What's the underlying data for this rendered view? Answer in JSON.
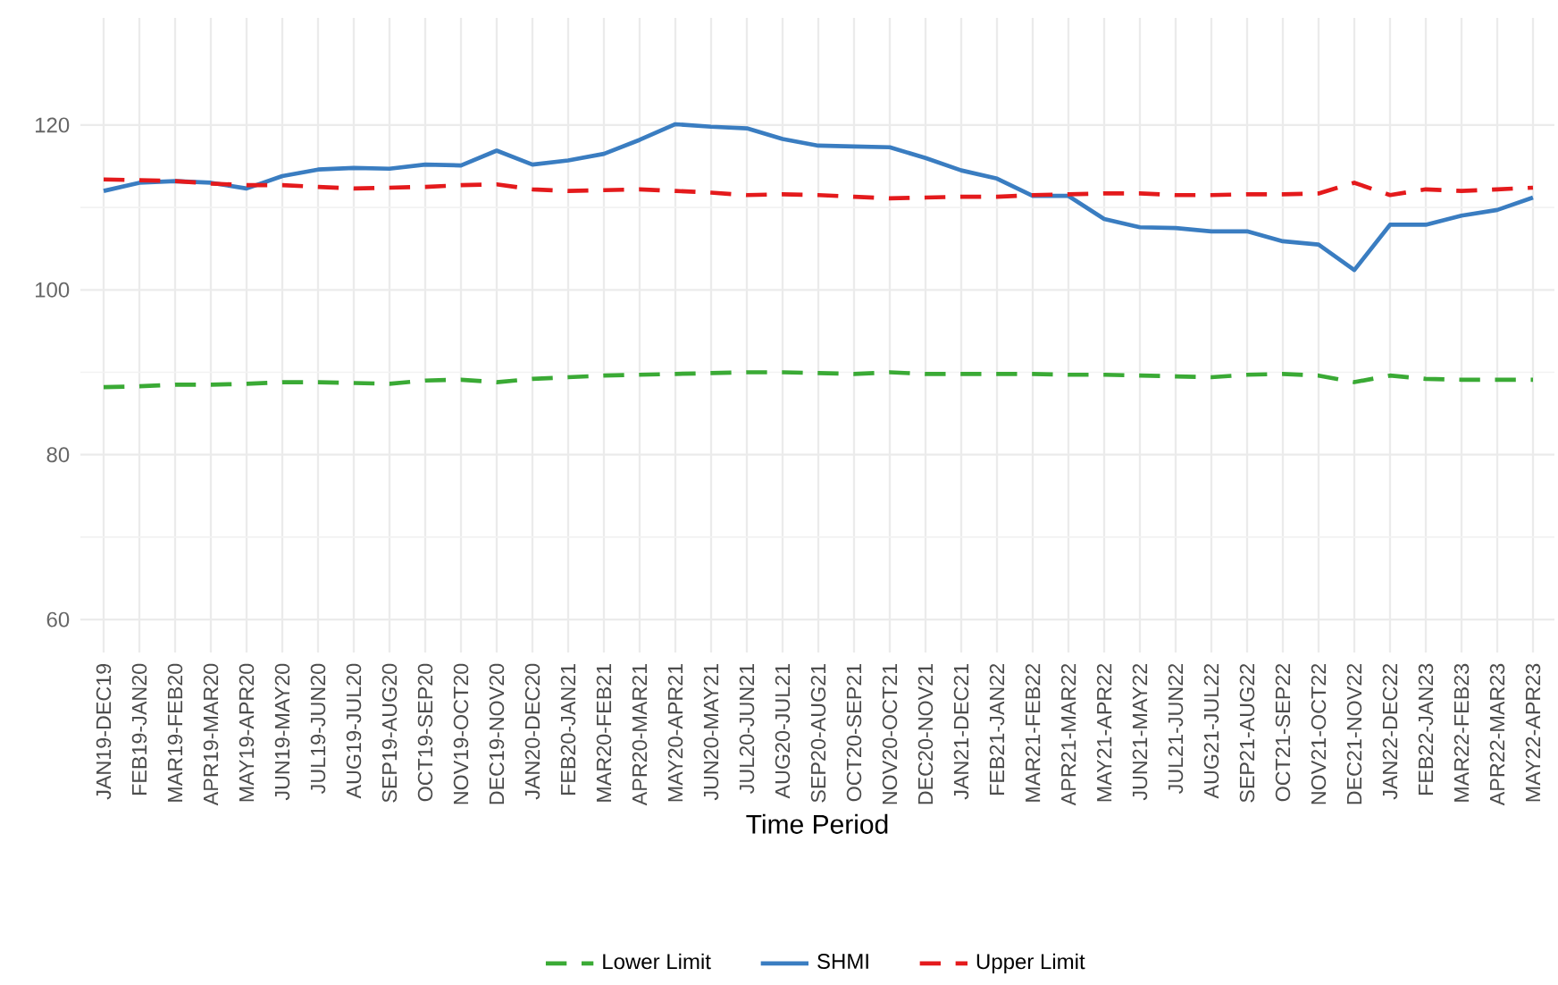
{
  "chart_data": {
    "type": "line",
    "xlabel": "Time Period",
    "categories": [
      "JAN19-DEC19",
      "FEB19-JAN20",
      "MAR19-FEB20",
      "APR19-MAR20",
      "MAY19-APR20",
      "JUN19-MAY20",
      "JUL19-JUN20",
      "AUG19-JUL20",
      "SEP19-AUG20",
      "OCT19-SEP20",
      "NOV19-OCT20",
      "DEC19-NOV20",
      "JAN20-DEC20",
      "FEB20-JAN21",
      "MAR20-FEB21",
      "APR20-MAR21",
      "MAY20-APR21",
      "JUN20-MAY21",
      "JUL20-JUN21",
      "AUG20-JUL21",
      "SEP20-AUG21",
      "OCT20-SEP21",
      "NOV20-OCT21",
      "DEC20-NOV21",
      "JAN21-DEC21",
      "FEB21-JAN22",
      "MAR21-FEB22",
      "APR21-MAR22",
      "MAY21-APR22",
      "JUN21-MAY22",
      "JUL21-JUN22",
      "AUG21-JUL22",
      "SEP21-AUG22",
      "OCT21-SEP22",
      "NOV21-OCT22",
      "DEC21-NOV22",
      "JAN22-DEC22",
      "FEB22-JAN23",
      "MAR22-FEB23",
      "APR22-MAR23",
      "MAY22-APR23"
    ],
    "series": [
      {
        "name": "Lower Limit",
        "color": "#3aaa35",
        "line_style": "dashed",
        "values": [
          88.2,
          88.3,
          88.5,
          88.5,
          88.6,
          88.8,
          88.8,
          88.7,
          88.6,
          89.0,
          89.1,
          88.8,
          89.2,
          89.4,
          89.6,
          89.7,
          89.8,
          89.9,
          90.0,
          90.0,
          89.9,
          89.8,
          90.0,
          89.8,
          89.8,
          89.8,
          89.8,
          89.7,
          89.7,
          89.6,
          89.5,
          89.4,
          89.7,
          89.8,
          89.6,
          88.8,
          89.6,
          89.2,
          89.1,
          89.1,
          89.1
        ]
      },
      {
        "name": "SHMI",
        "color": "#3a7dc1",
        "line_style": "solid",
        "values": [
          112.0,
          113.0,
          113.2,
          113.0,
          112.3,
          113.8,
          114.6,
          114.8,
          114.7,
          115.2,
          115.1,
          116.9,
          115.2,
          115.7,
          116.5,
          118.2,
          120.1,
          119.8,
          119.6,
          118.3,
          117.5,
          117.4,
          117.3,
          116.0,
          114.5,
          113.5,
          111.4,
          111.4,
          108.6,
          107.6,
          107.5,
          107.1,
          107.1,
          105.9,
          105.5,
          102.4,
          107.9,
          107.9,
          109.0,
          109.7,
          111.2
        ]
      },
      {
        "name": "Upper Limit",
        "color": "#e41a1c",
        "line_style": "dashed",
        "values": [
          113.4,
          113.3,
          113.2,
          112.9,
          112.7,
          112.7,
          112.5,
          112.3,
          112.4,
          112.5,
          112.7,
          112.8,
          112.2,
          112.0,
          112.1,
          112.2,
          112.0,
          111.8,
          111.5,
          111.6,
          111.5,
          111.3,
          111.1,
          111.2,
          111.3,
          111.3,
          111.5,
          111.6,
          111.7,
          111.7,
          111.5,
          111.5,
          111.6,
          111.6,
          111.7,
          113.0,
          111.5,
          112.2,
          112.0,
          112.2,
          112.4
        ]
      }
    ],
    "ylim": [
      56,
      133
    ],
    "yticks": [
      60,
      80,
      100,
      120
    ],
    "grid": true,
    "legend": "bottom",
    "marker": "none"
  }
}
